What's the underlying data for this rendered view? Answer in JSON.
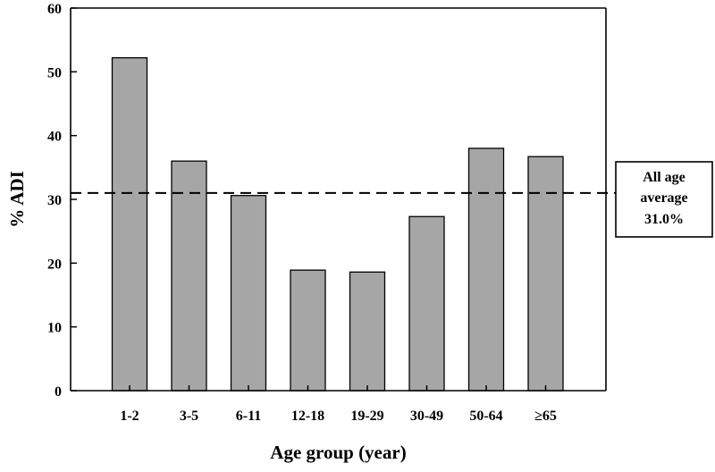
{
  "chart_data": {
    "type": "bar",
    "title": "",
    "xlabel": "Age group (year)",
    "ylabel": "% ADI",
    "categories": [
      "1-2",
      "3-5",
      "6-11",
      "12-18",
      "19-29",
      "30-49",
      "50-64",
      "≥65"
    ],
    "values": [
      52.2,
      36.0,
      30.6,
      18.9,
      18.6,
      27.3,
      38.0,
      36.7
    ],
    "ylim": [
      0,
      60
    ],
    "yticks": [
      0,
      10,
      20,
      30,
      40,
      50,
      60
    ],
    "grid": false,
    "bar_color": "#a6a6a6",
    "reference_line": {
      "value": 31.0,
      "style": "dashed",
      "label_lines": [
        "All age",
        "average",
        "31.0%"
      ]
    }
  }
}
